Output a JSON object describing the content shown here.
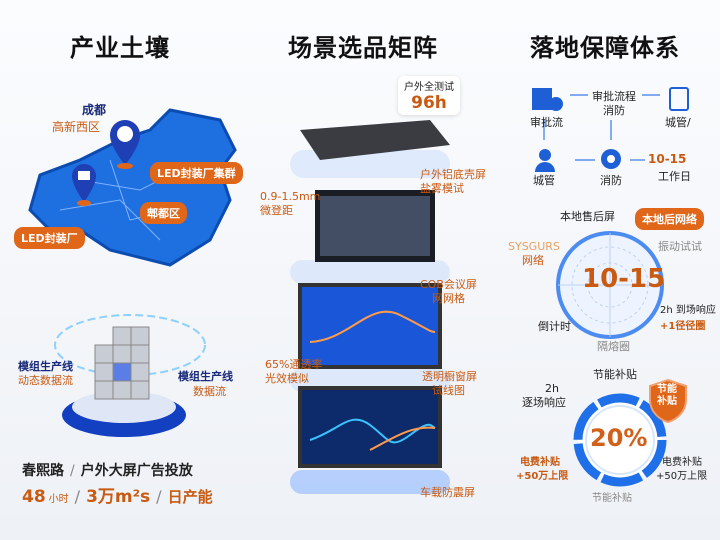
{
  "columns": [
    {
      "title": "产业土壤"
    },
    {
      "title": "场景选品矩阵"
    },
    {
      "title": "落地保障体系"
    }
  ],
  "map": {
    "pin_city": "成都",
    "pin_district": "高新西区",
    "tag_cluster": "LED封装厂集群",
    "tag_district": "郫都区",
    "tag_factory": "LED封装厂"
  },
  "production": {
    "left_line1": "模组生产线",
    "left_line2": "动态数据流",
    "right_line1": "模组生产线",
    "right_line2": "数据流",
    "stat_top_left": "春熙路",
    "stat_top_right": "户外大屏广告投放",
    "stat_num1": "48",
    "stat_unit1": "小时",
    "stat_num2": "3万m²s",
    "stat_unit2": "日产能",
    "sep": "/"
  },
  "matrix": {
    "badge_label": "户外全测试",
    "badge_value": "96h",
    "p1_line1": "户外铝底壳屏",
    "p1_line2": "盐雾模试",
    "p2_spec1": "0.9-1.5mm",
    "p2_spec2": "微登距",
    "p2_line1": "COB会议屏",
    "p2_line2": "网网格",
    "p3_spec1": "65%通透率",
    "p3_spec2": "光效模似",
    "p3_line1": "透明橱窗屏",
    "p3_line2": "试线图",
    "p4_line1": "车载防震屏"
  },
  "flow": {
    "approval": "审批流",
    "process1": "审批流程",
    "process2": "消防",
    "city_mgmt_right": "城管/",
    "city_mgmt": "城管",
    "fire": "消防",
    "days_value": "10-15",
    "days_unit": "工作日"
  },
  "radar": {
    "top": "本地售后屏",
    "tag": "本地后网络",
    "right_top": "振动试试",
    "left1": "SYSGURS",
    "left2": "网络",
    "center": "10-15",
    "right_bottom1": "2h 到场响应",
    "right_bottom2": "+1径径圈",
    "left_bottom": "倒计时",
    "bottom": "隔熔圈"
  },
  "subsidy": {
    "top": "节能补贴",
    "shield1": "节能",
    "shield2": "补贴",
    "left_top1": "2h",
    "left_top2": "逐场响应",
    "center": "20%",
    "left_bottom1": "电费补贴",
    "left_bottom2": "+50万上限",
    "right_bottom1": "电费补贴",
    "right_bottom2": "+50万上限",
    "bottom": "节能补贴"
  },
  "colors": {
    "accent": "#e0661a",
    "blue": "#1f5fd6",
    "navy": "#1a2a7a"
  }
}
